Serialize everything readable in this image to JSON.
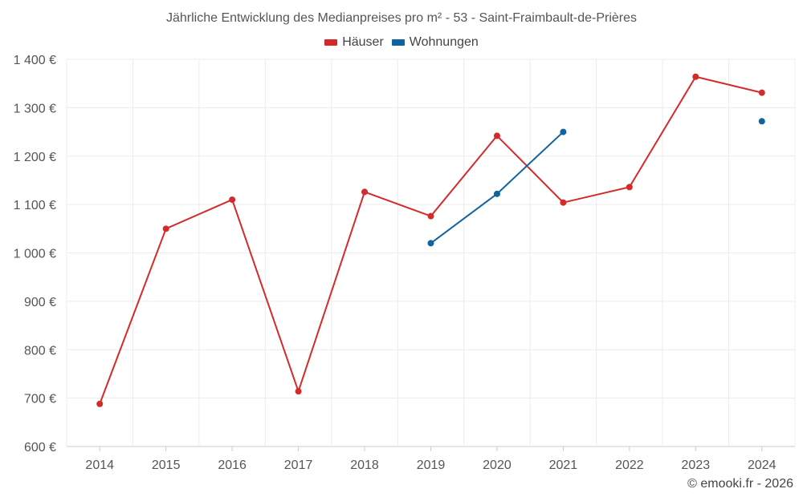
{
  "chart_data": {
    "type": "line",
    "title": "Jährliche Entwicklung des Medianpreises pro m² - 53 - Saint-Fraimbault-de-Prières",
    "categories": [
      "2014",
      "2015",
      "2016",
      "2017",
      "2018",
      "2019",
      "2020",
      "2021",
      "2022",
      "2023",
      "2024"
    ],
    "series": [
      {
        "name": "Häuser",
        "color": "#d42a2a",
        "values": [
          688,
          1050,
          1110,
          714,
          1126,
          1076,
          1242,
          1104,
          1136,
          1364,
          1331
        ]
      },
      {
        "name": "Wohnungen",
        "color": "#0f64a0",
        "values": [
          null,
          null,
          null,
          null,
          null,
          1020,
          1122,
          1250,
          null,
          null,
          1272
        ]
      }
    ],
    "ylim": [
      600,
      1400
    ],
    "yticks": [
      600,
      700,
      800,
      900,
      1000,
      1100,
      1200,
      1300,
      1400
    ],
    "ytick_labels": [
      "600 €",
      "700 €",
      "800 €",
      "900 €",
      "1 000 €",
      "1 100 €",
      "1 200 €",
      "1 300 €",
      "1 400 €"
    ],
    "grid": true,
    "legend_position": "top-center"
  },
  "credit": "© emooki.fr - 2026"
}
